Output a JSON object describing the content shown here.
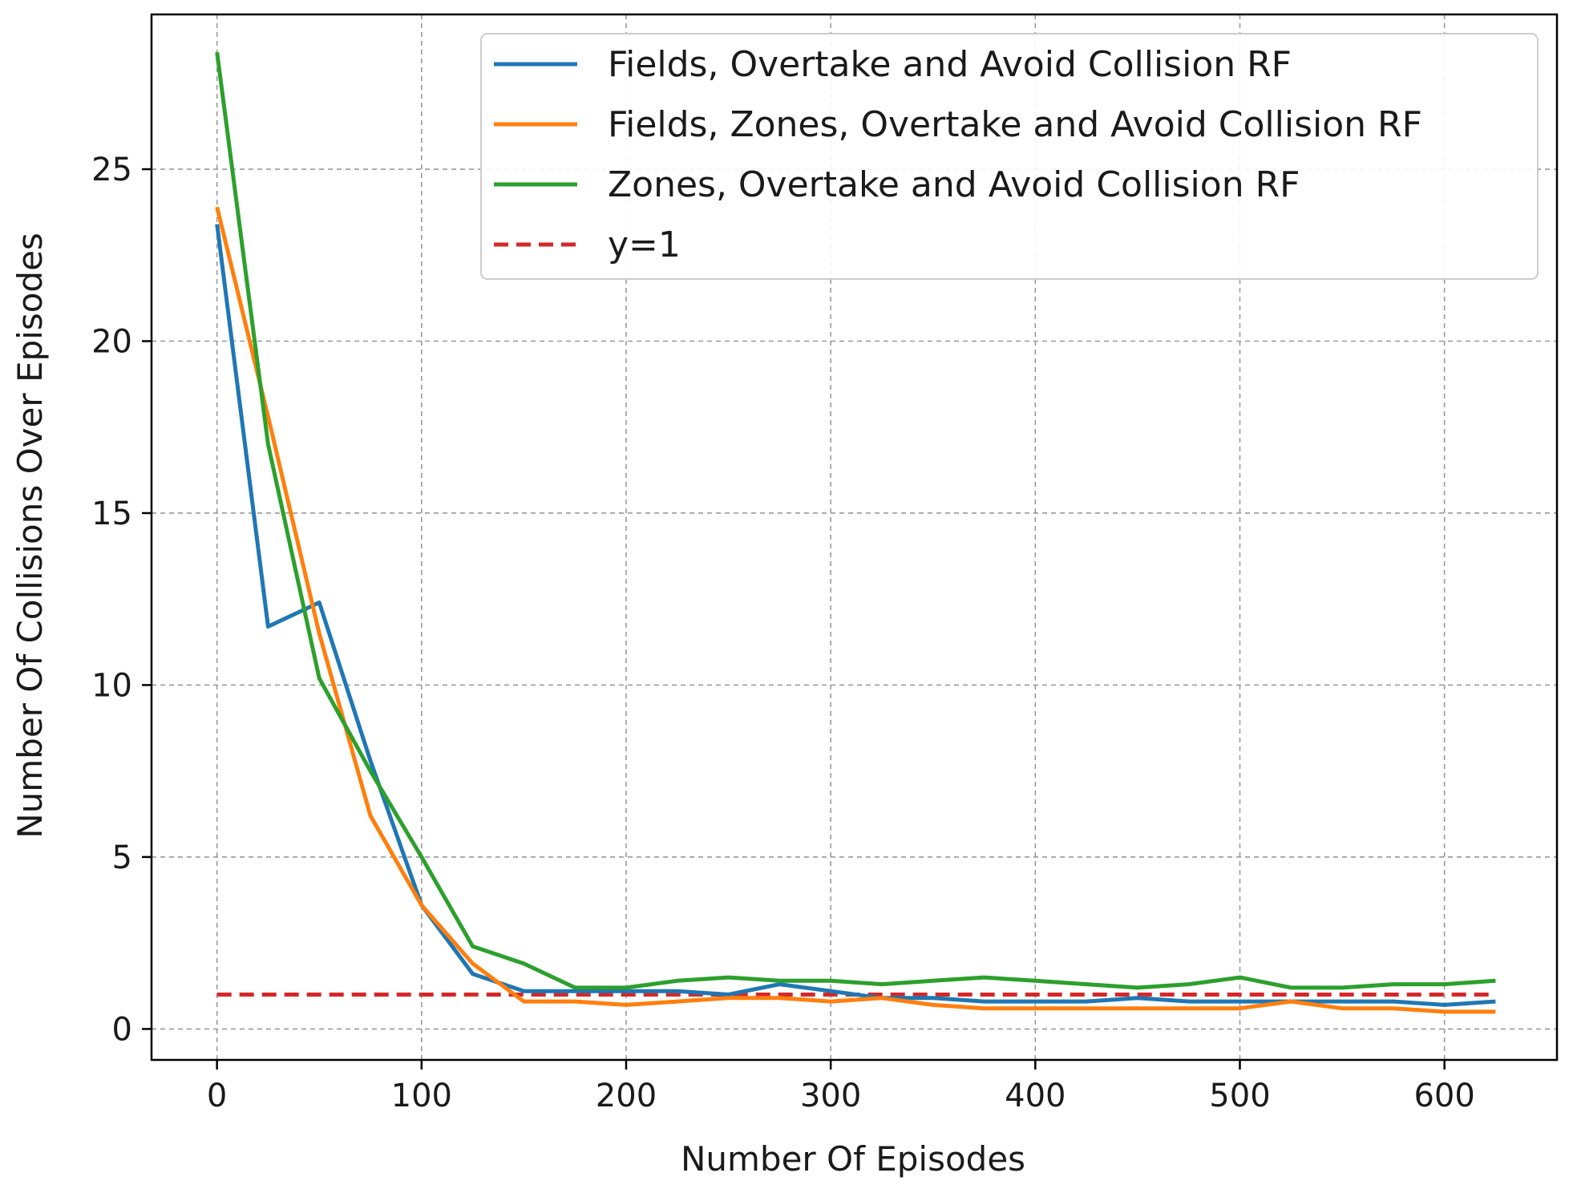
{
  "chart_data": {
    "type": "line",
    "title": "",
    "xlabel": "Number Of Episodes",
    "ylabel": "Number Of Collisions Over Episodes",
    "xlim": [
      -32,
      655
    ],
    "ylim": [
      -0.9,
      29.5
    ],
    "xticks": [
      0,
      100,
      200,
      300,
      400,
      500,
      600
    ],
    "yticks": [
      0,
      5,
      10,
      15,
      20,
      25
    ],
    "grid": true,
    "legend_position": "top-right",
    "x": [
      0,
      25,
      50,
      75,
      100,
      125,
      150,
      175,
      200,
      225,
      250,
      275,
      300,
      325,
      350,
      375,
      400,
      425,
      450,
      475,
      500,
      525,
      550,
      575,
      600,
      625
    ],
    "series": [
      {
        "name": "Fields, Overtake and Avoid Collision RF",
        "color": "#1f77b4",
        "style": "solid",
        "values": [
          23.4,
          11.7,
          12.4,
          7.8,
          3.6,
          1.6,
          1.1,
          1.1,
          1.1,
          1.1,
          1.0,
          1.3,
          1.1,
          0.9,
          0.9,
          0.8,
          0.8,
          0.8,
          0.9,
          0.8,
          0.8,
          0.8,
          0.8,
          0.8,
          0.7,
          0.8
        ]
      },
      {
        "name": "Fields, Zones, Overtake and Avoid Collision RF",
        "color": "#ff7f0e",
        "style": "solid",
        "values": [
          23.9,
          17.8,
          11.5,
          6.2,
          3.6,
          1.9,
          0.8,
          0.8,
          0.7,
          0.8,
          0.9,
          0.9,
          0.8,
          0.9,
          0.7,
          0.6,
          0.6,
          0.6,
          0.6,
          0.6,
          0.6,
          0.8,
          0.6,
          0.6,
          0.5,
          0.5
        ]
      },
      {
        "name": "Zones, Overtake and Avoid Collision RF",
        "color": "#2ca02c",
        "style": "solid",
        "values": [
          28.4,
          17.0,
          10.2,
          7.5,
          5.0,
          2.4,
          1.9,
          1.2,
          1.2,
          1.4,
          1.5,
          1.4,
          1.4,
          1.3,
          1.4,
          1.5,
          1.4,
          1.3,
          1.2,
          1.3,
          1.5,
          1.2,
          1.2,
          1.3,
          1.3,
          1.4
        ]
      },
      {
        "name": "y=1",
        "color": "#d62728",
        "style": "dashed",
        "values": [
          1,
          1,
          1,
          1,
          1,
          1,
          1,
          1,
          1,
          1,
          1,
          1,
          1,
          1,
          1,
          1,
          1,
          1,
          1,
          1,
          1,
          1,
          1,
          1,
          1,
          1
        ]
      }
    ]
  }
}
